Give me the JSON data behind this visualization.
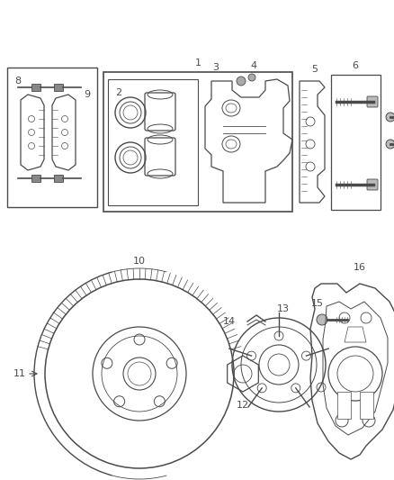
{
  "background_color": "#ffffff",
  "line_color": "#4a4a4a",
  "figsize": [
    4.38,
    5.33
  ],
  "dpi": 100
}
